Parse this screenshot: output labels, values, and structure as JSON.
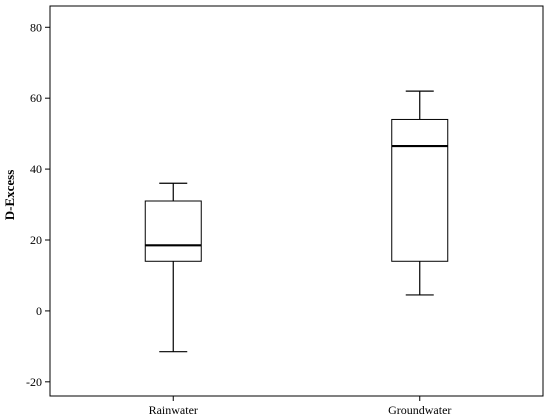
{
  "chart_data": {
    "type": "boxplot",
    "ylabel": "D-Excess",
    "xlabel": "",
    "ylim": [
      -24,
      86
    ],
    "yticks": [
      -20,
      0,
      20,
      40,
      60,
      80
    ],
    "grid": false,
    "categories": [
      "Rainwater",
      "Groundwater"
    ],
    "boxes": [
      {
        "category": "Rainwater",
        "min": -11.5,
        "q1": 14,
        "median": 18.5,
        "q3": 31,
        "max": 36
      },
      {
        "category": "Groundwater",
        "min": 4.5,
        "q1": 14,
        "median": 46.5,
        "q3": 54,
        "max": 62
      }
    ]
  }
}
